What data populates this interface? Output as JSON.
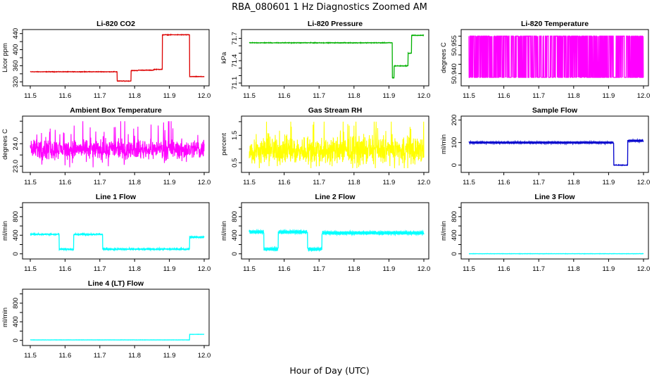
{
  "figure": {
    "title": "RBA_080601  1 Hz Diagnostics Zoomed AM",
    "xlabel": "Hour of Day (UTC)"
  },
  "chart_data": [
    {
      "id": "co2",
      "type": "line",
      "title": "Li-820 CO2",
      "ylabel": "Licor ppm",
      "color": "#dd0000",
      "xlim": [
        11.5,
        12.0
      ],
      "ylim": [
        317,
        443
      ],
      "yticks": [
        320,
        340,
        360,
        380,
        400,
        420,
        440
      ],
      "ytick_labels": [
        "320",
        "",
        "360",
        "",
        "400",
        "",
        "440"
      ],
      "x_ticks": [
        11.5,
        11.6,
        11.7,
        11.8,
        11.9,
        12.0
      ],
      "x_tick_labels": [
        "11.5",
        "11.6",
        "11.7",
        "11.8",
        "11.9",
        "12.0"
      ],
      "noise": 0.6,
      "mode": "step",
      "segments": [
        [
          11.5,
          11.75,
          345
        ],
        [
          11.75,
          11.79,
          322
        ],
        [
          11.79,
          11.81,
          348
        ],
        [
          11.81,
          11.855,
          349
        ],
        [
          11.855,
          11.88,
          351
        ],
        [
          11.88,
          11.958,
          437
        ],
        [
          11.958,
          12.0,
          333
        ]
      ]
    },
    {
      "id": "pressure",
      "type": "line",
      "title": "Li-820 Pressure",
      "ylabel": "kPa",
      "color": "#00b000",
      "xlim": [
        11.5,
        12.0
      ],
      "ylim": [
        71.1,
        71.78
      ],
      "yticks": [
        71.1,
        71.2,
        71.3,
        71.4,
        71.5,
        71.6,
        71.7
      ],
      "ytick_labels": [
        "71.1",
        "",
        "",
        "71.4",
        "",
        "",
        "71.7"
      ],
      "x_ticks": [
        11.5,
        11.6,
        11.7,
        11.8,
        11.9,
        12.0
      ],
      "x_tick_labels": [
        "11.5",
        "11.6",
        "11.7",
        "11.8",
        "11.9",
        "12.0"
      ],
      "noise": 0.004,
      "mode": "step",
      "segments": [
        [
          11.5,
          11.91,
          71.64
        ],
        [
          11.91,
          11.915,
          71.17
        ],
        [
          11.915,
          11.955,
          71.33
        ],
        [
          11.955,
          11.965,
          71.5
        ],
        [
          11.965,
          12.0,
          71.74
        ]
      ]
    },
    {
      "id": "licor_temp",
      "type": "line",
      "title": "Li-820 Temperature",
      "ylabel": "degrees C",
      "color": "#ff00ff",
      "xlim": [
        11.5,
        12.0
      ],
      "ylim": [
        50.935,
        50.962
      ],
      "yticks": [
        50.94,
        50.945,
        50.95,
        50.955,
        50.96
      ],
      "ytick_labels": [
        "50.940",
        "",
        "",
        "50.955",
        ""
      ],
      "x_ticks": [
        11.5,
        11.6,
        11.7,
        11.8,
        11.9,
        12.0
      ],
      "x_tick_labels": [
        "11.5",
        "11.6",
        "11.7",
        "11.8",
        "11.9",
        "12.0"
      ],
      "mode": "binary",
      "low": 50.938,
      "high": 50.96
    },
    {
      "id": "box_temp",
      "type": "line",
      "title": "Ambient Box Temperature",
      "ylabel": "degrees C",
      "color": "#ff00ff",
      "xlim": [
        11.5,
        12.0
      ],
      "ylim": [
        22.85,
        25.1
      ],
      "yticks": [
        23.0,
        23.5,
        24.0,
        24.5,
        25.0
      ],
      "ytick_labels": [
        "23.0",
        "",
        "24.0",
        "",
        ""
      ],
      "x_ticks": [
        11.5,
        11.6,
        11.7,
        11.8,
        11.9,
        12.0
      ],
      "x_tick_labels": [
        "11.5",
        "11.6",
        "11.7",
        "11.8",
        "11.9",
        "12.0"
      ],
      "mode": "noisy",
      "base": 23.75,
      "amp": 0.45,
      "spike": 1.1,
      "lo": 22.95,
      "hi": 25.0
    },
    {
      "id": "rh",
      "type": "line",
      "title": "Gas Stream RH",
      "ylabel": "percent",
      "color": "#ffff00",
      "xlim": [
        11.5,
        12.0
      ],
      "ylim": [
        0.25,
        2.1
      ],
      "yticks": [
        0.5,
        1.0,
        1.5,
        2.0
      ],
      "ytick_labels": [
        "0.5",
        "",
        "1.5",
        ""
      ],
      "x_ticks": [
        11.5,
        11.6,
        11.7,
        11.8,
        11.9,
        12.0
      ],
      "x_tick_labels": [
        "11.5",
        "11.6",
        "11.7",
        "11.8",
        "11.9",
        "12.0"
      ],
      "mode": "noisy",
      "base": 0.95,
      "amp": 0.55,
      "spike": 0.9,
      "lo": 0.3,
      "hi": 2.0
    },
    {
      "id": "sample_flow",
      "type": "line",
      "title": "Sample Flow",
      "ylabel": "ml/min",
      "color": "#0000cc",
      "xlim": [
        11.5,
        12.0
      ],
      "ylim": [
        -20,
        205
      ],
      "yticks": [
        0,
        100,
        200
      ],
      "ytick_labels": [
        "0",
        "100",
        "200"
      ],
      "x_ticks": [
        11.5,
        11.6,
        11.7,
        11.8,
        11.9,
        12.0
      ],
      "x_tick_labels": [
        "11.5",
        "11.6",
        "11.7",
        "11.8",
        "11.9",
        "12.0"
      ],
      "noise": 1.5,
      "osc": 4,
      "mode": "step",
      "segments": [
        [
          11.5,
          11.915,
          100
        ],
        [
          11.915,
          11.955,
          0
        ],
        [
          11.955,
          12.0,
          108
        ]
      ]
    },
    {
      "id": "line1",
      "type": "line",
      "title": "Line 1 Flow",
      "ylabel": "ml/min",
      "color": "#00ffff",
      "xlim": [
        11.5,
        12.0
      ],
      "ylim": [
        -50,
        1040
      ],
      "yticks": [
        0,
        200,
        400,
        600,
        800,
        1000
      ],
      "ytick_labels": [
        "0",
        "",
        "400",
        "",
        "800",
        ""
      ],
      "x_ticks": [
        11.5,
        11.6,
        11.7,
        11.8,
        11.9,
        12.0
      ],
      "x_tick_labels": [
        "11.5",
        "11.6",
        "11.7",
        "11.8",
        "11.9",
        "12.0"
      ],
      "noise": 18,
      "mode": "step",
      "segments": [
        [
          11.5,
          11.583,
          420
        ],
        [
          11.583,
          11.625,
          100
        ],
        [
          11.625,
          11.708,
          420
        ],
        [
          11.708,
          11.958,
          100
        ],
        [
          11.958,
          12.0,
          360
        ]
      ]
    },
    {
      "id": "line2",
      "type": "line",
      "title": "Line 2 Flow",
      "ylabel": "ml/min",
      "color": "#00ffff",
      "xlim": [
        11.5,
        12.0
      ],
      "ylim": [
        -50,
        1040
      ],
      "yticks": [
        0,
        200,
        400,
        600,
        800,
        1000
      ],
      "ytick_labels": [
        "0",
        "",
        "400",
        "",
        "800",
        ""
      ],
      "x_ticks": [
        11.5,
        11.6,
        11.7,
        11.8,
        11.9,
        12.0
      ],
      "x_tick_labels": [
        "11.5",
        "11.6",
        "11.7",
        "11.8",
        "11.9",
        "12.0"
      ],
      "noise": 15,
      "osc": 30,
      "mode": "step",
      "segments": [
        [
          11.5,
          11.542,
          470
        ],
        [
          11.542,
          11.583,
          100
        ],
        [
          11.583,
          11.667,
          470
        ],
        [
          11.667,
          11.708,
          100
        ],
        [
          11.708,
          12.0,
          450
        ]
      ]
    },
    {
      "id": "line3",
      "type": "line",
      "title": "Line 3 Flow",
      "ylabel": "ml/min",
      "color": "#00ffff",
      "xlim": [
        11.5,
        12.0
      ],
      "ylim": [
        -50,
        1040
      ],
      "yticks": [
        0,
        200,
        400,
        600,
        800,
        1000
      ],
      "ytick_labels": [
        "0",
        "",
        "400",
        "",
        "800",
        ""
      ],
      "x_ticks": [
        11.5,
        11.6,
        11.7,
        11.8,
        11.9,
        12.0
      ],
      "x_tick_labels": [
        "11.5",
        "11.6",
        "11.7",
        "11.8",
        "11.9",
        "12.0"
      ],
      "noise": 3,
      "mode": "step",
      "segments": [
        [
          11.5,
          12.0,
          2
        ]
      ]
    },
    {
      "id": "line4",
      "type": "line",
      "title": "Line 4 (LT) Flow",
      "ylabel": "ml/min",
      "color": "#00ffff",
      "xlim": [
        11.5,
        12.0
      ],
      "ylim": [
        -50,
        1040
      ],
      "yticks": [
        0,
        200,
        400,
        600,
        800,
        1000
      ],
      "ytick_labels": [
        "0",
        "",
        "400",
        "",
        "800",
        ""
      ],
      "x_ticks": [
        11.5,
        11.6,
        11.7,
        11.8,
        11.9,
        12.0
      ],
      "x_tick_labels": [
        "11.5",
        "11.6",
        "11.7",
        "11.8",
        "11.9",
        "12.0"
      ],
      "noise": 2,
      "mode": "step",
      "segments": [
        [
          11.5,
          11.958,
          10
        ],
        [
          11.958,
          12.0,
          130
        ]
      ]
    }
  ]
}
